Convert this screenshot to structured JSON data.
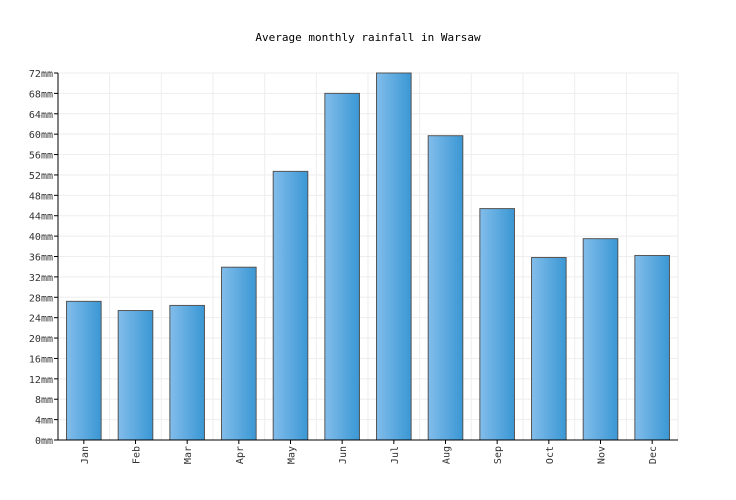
{
  "chart_data": {
    "type": "bar",
    "title": "Average monthly rainfall in Warsaw",
    "xlabel": "",
    "ylabel": "",
    "categories": [
      "Jan",
      "Feb",
      "Mar",
      "Apr",
      "May",
      "Jun",
      "Jul",
      "Aug",
      "Sep",
      "Oct",
      "Nov",
      "Dec"
    ],
    "values": [
      27.2,
      25.4,
      26.4,
      33.9,
      52.7,
      68.0,
      72.0,
      59.7,
      45.4,
      35.8,
      39.5,
      36.2
    ],
    "ylim": [
      0,
      72
    ],
    "yticks": [
      0,
      4,
      8,
      12,
      16,
      20,
      24,
      28,
      32,
      36,
      40,
      44,
      48,
      52,
      56,
      60,
      64,
      68,
      72
    ],
    "ytick_labels": [
      "0mm",
      "4mm",
      "8mm",
      "12mm",
      "16mm",
      "20mm",
      "24mm",
      "28mm",
      "32mm",
      "36mm",
      "40mm",
      "44mm",
      "48mm",
      "52mm",
      "56mm",
      "60mm",
      "64mm",
      "68mm",
      "72mm"
    ],
    "grid": true,
    "colors": {
      "bar_light": "#82bdeb",
      "bar_dark": "#3a97d4",
      "bar_edge": "#555555",
      "grid": "#eeeeee",
      "axis": "#000000"
    }
  }
}
